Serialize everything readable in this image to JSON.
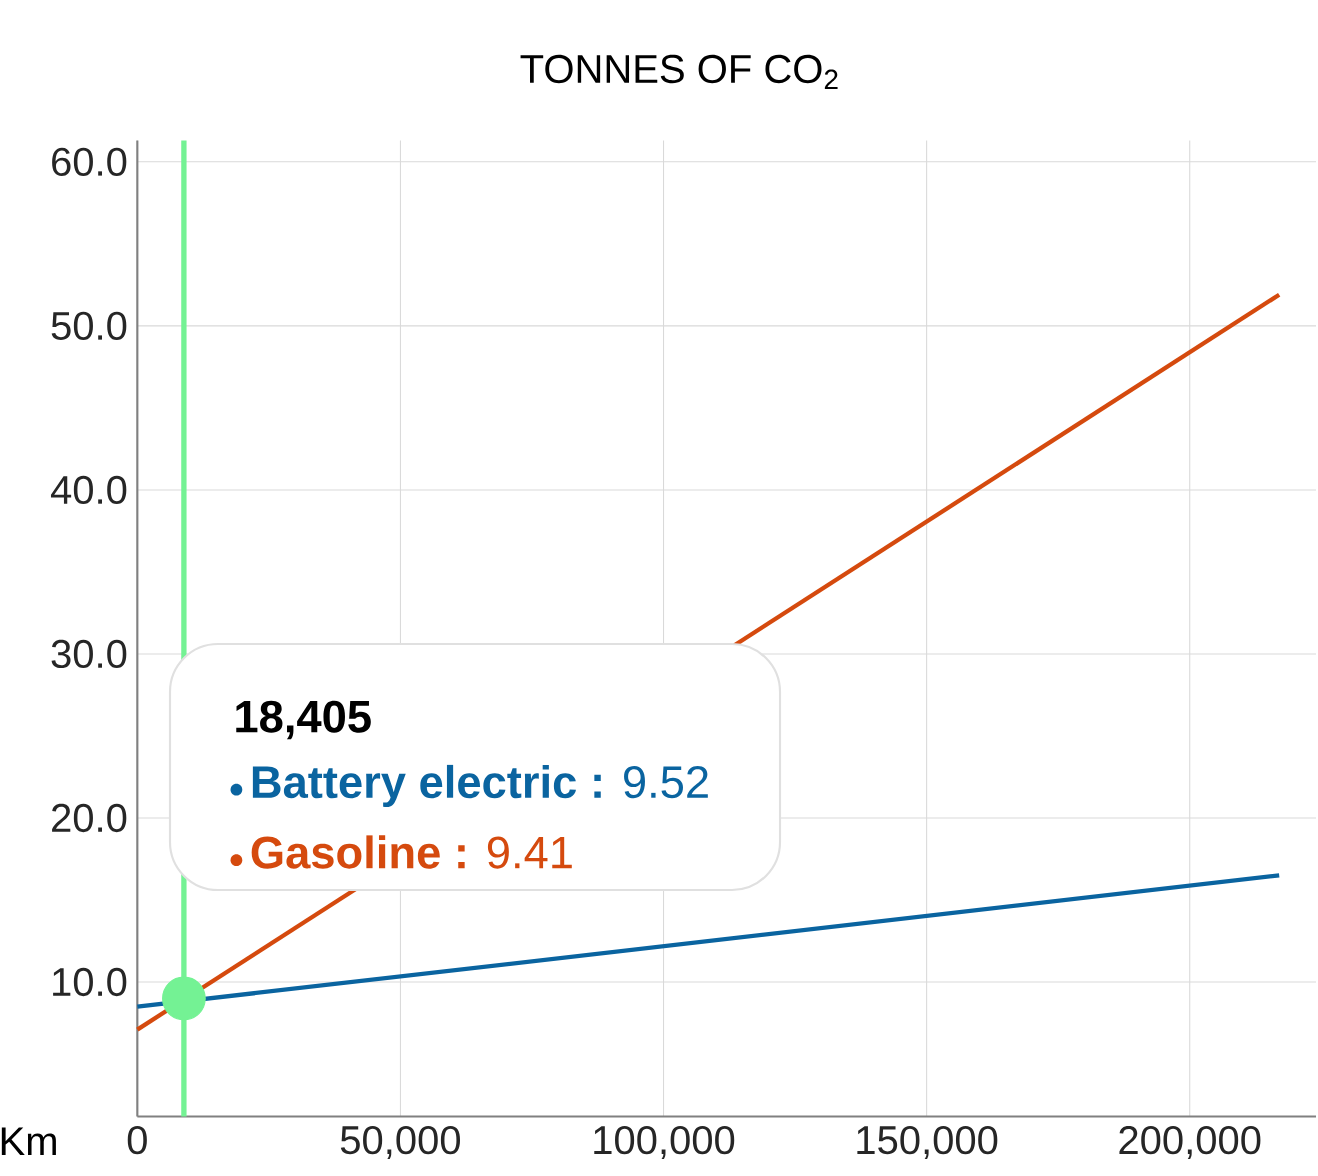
{
  "chart_data": {
    "type": "line",
    "title": "TONNES OF CO$_{2}$",
    "xlabel": "Km",
    "x": [
      0,
      217000
    ],
    "series": [
      {
        "name": "Battery electric",
        "color": "#0a64a0",
        "values": [
          8.5,
          16.5
        ]
      },
      {
        "name": "Gasoline",
        "color": "#d54a0e",
        "values": [
          7.1,
          51.9
        ]
      },
      {
        "type": "scatter",
        "color": "#74f294",
        "x": [
          8850
        ],
        "values": [
          9.0
        ]
      }
    ],
    "xlim": [
      0,
      224000
    ],
    "ylim": [
      1.8,
      61.3
    ],
    "xticks": [
      0,
      {
        "value": 50000,
        "label": "50,000"
      },
      {
        "value": 100000,
        "label": "100,000"
      },
      {
        "value": 150000,
        "label": "150,000"
      },
      {
        "value": 200000,
        "label": "200,000"
      }
    ],
    "yticks": [
      {
        "value": 10,
        "label": "10.0"
      },
      {
        "value": 20,
        "label": "20.0"
      },
      {
        "value": 30,
        "label": "30.0"
      },
      {
        "value": 40,
        "label": "40.0"
      },
      {
        "value": 50,
        "label": "50.0"
      },
      {
        "value": 60,
        "label": "60.0"
      }
    ],
    "grid": true,
    "legend": "bottom left",
    "ref_lines": [
      {
        "axis": "x",
        "value": 8850,
        "color": "#74f294"
      }
    ],
    "annotations": [
      "18,405",
      "**:** 9.52",
      "**:** 9.41"
    ]
  }
}
